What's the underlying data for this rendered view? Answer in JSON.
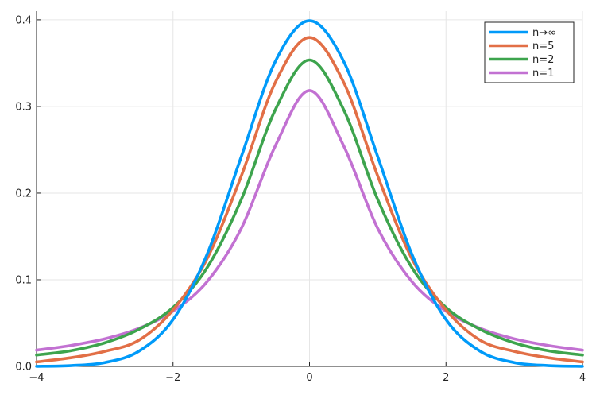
{
  "chart_data": {
    "type": "line",
    "title": "",
    "xlabel": "",
    "ylabel": "",
    "xlim": [
      -4,
      4
    ],
    "ylim": [
      0,
      0.41
    ],
    "xticks": [
      -4,
      -2,
      0,
      2,
      4
    ],
    "xtick_labels": [
      "−4",
      "−2",
      "0",
      "2",
      "4"
    ],
    "yticks": [
      0.0,
      0.1,
      0.2,
      0.3,
      0.4
    ],
    "ytick_labels": [
      "0.0",
      "0.1",
      "0.2",
      "0.3",
      "0.4"
    ],
    "grid": true,
    "legend_position": "top-right",
    "x": [
      -4,
      -3.5,
      -3,
      -2.5,
      -2,
      -1.5,
      -1,
      -0.5,
      0,
      0.5,
      1,
      1.5,
      2,
      2.5,
      3,
      3.5,
      4
    ],
    "series": [
      {
        "name": "n→∞",
        "color": "#009af9",
        "values": [
          0.0001,
          0.0009,
          0.0044,
          0.0175,
          0.054,
          0.1295,
          0.242,
          0.3521,
          0.3989,
          0.3521,
          0.242,
          0.1295,
          0.054,
          0.0175,
          0.0044,
          0.0009,
          0.0001
        ]
      },
      {
        "name": "n=5",
        "color": "#e26f46",
        "values": [
          0.0051,
          0.0099,
          0.0173,
          0.0302,
          0.0651,
          0.1245,
          0.2197,
          0.3279,
          0.3796,
          0.3279,
          0.2197,
          0.1245,
          0.0651,
          0.0302,
          0.0173,
          0.0099,
          0.0051
        ]
      },
      {
        "name": "n=2",
        "color": "#3da44d",
        "values": [
          0.0131,
          0.018,
          0.0272,
          0.0427,
          0.068,
          0.114,
          0.1925,
          0.2963,
          0.3536,
          0.2963,
          0.1925,
          0.114,
          0.068,
          0.0427,
          0.0272,
          0.018,
          0.0131
        ]
      },
      {
        "name": "n=1",
        "color": "#c271d2",
        "values": [
          0.0187,
          0.0241,
          0.0318,
          0.0439,
          0.0637,
          0.0979,
          0.1592,
          0.2546,
          0.3183,
          0.2546,
          0.1592,
          0.0979,
          0.0637,
          0.0439,
          0.0318,
          0.0241,
          0.0187
        ]
      }
    ]
  }
}
